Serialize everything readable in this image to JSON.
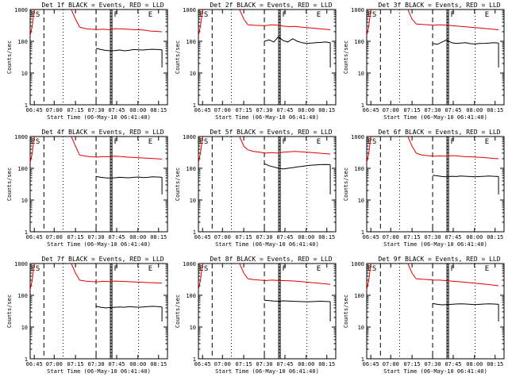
{
  "chart_data": [
    {
      "type": "line",
      "title": "Det 1f BLACK = Events, RED = LLD",
      "xlabel": "Start Time (06-May-10 06:41:40)",
      "ylabel": "Counts/sec",
      "x_ticks": [
        "06:45",
        "07:00",
        "07:15",
        "07:30",
        "07:45",
        "08:00",
        "08:15"
      ],
      "y_ticks": [
        "1",
        "10",
        "100",
        "1000"
      ],
      "ylim": [
        1,
        1000
      ],
      "y_scale": "log",
      "markers": [
        "E",
        "S",
        "F",
        "E"
      ],
      "series": [
        {
          "name": "LLD",
          "color": "#e00000",
          "values": [
            280,
            250,
            240,
            235,
            240,
            230,
            250,
            245,
            240,
            235,
            230,
            225,
            210,
            205,
            200
          ]
        },
        {
          "name": "Events",
          "color": "#000000",
          "values": [
            60,
            55,
            52,
            50,
            51,
            53,
            50,
            52,
            55,
            54,
            53,
            55,
            56,
            55,
            54
          ]
        }
      ]
    },
    {
      "type": "line",
      "title": "Det 2f BLACK = Events, RED = LLD",
      "xlabel": "Start Time (06-May-10 06:41:40)",
      "ylabel": "Counts/sec",
      "x_ticks": [
        "06:45",
        "07:00",
        "07:15",
        "07:30",
        "07:45",
        "08:00",
        "08:15"
      ],
      "y_ticks": [
        "1",
        "10",
        "100",
        "1000"
      ],
      "ylim": [
        1,
        1000
      ],
      "y_scale": "log",
      "markers": [
        "E",
        "S",
        "F",
        "E"
      ],
      "series": [
        {
          "name": "LLD",
          "color": "#e00000",
          "values": [
            330,
            320,
            315,
            310,
            330,
            320,
            300,
            290,
            295,
            280,
            270,
            260,
            250,
            240,
            230
          ]
        },
        {
          "name": "Events",
          "color": "#000000",
          "values": [
            100,
            110,
            95,
            140,
            105,
            95,
            120,
            100,
            90,
            85,
            88,
            90,
            92,
            95,
            90
          ]
        }
      ]
    },
    {
      "type": "line",
      "title": "Det 3f BLACK = Events, RED = LLD",
      "xlabel": "Start Time (06-May-10 06:41:40)",
      "ylabel": "Counts/sec",
      "x_ticks": [
        "06:45",
        "07:00",
        "07:15",
        "07:30",
        "07:45",
        "08:00",
        "08:15"
      ],
      "y_ticks": [
        "1",
        "10",
        "100",
        "1000"
      ],
      "ylim": [
        1,
        1000
      ],
      "y_scale": "log",
      "markers": [
        "E",
        "S",
        "F",
        "E"
      ],
      "series": [
        {
          "name": "LLD",
          "color": "#e00000",
          "values": [
            350,
            340,
            330,
            320,
            330,
            320,
            310,
            300,
            290,
            280,
            270,
            260,
            250,
            240,
            230
          ]
        },
        {
          "name": "Events",
          "color": "#000000",
          "values": [
            85,
            80,
            95,
            110,
            90,
            85,
            88,
            90,
            84,
            82,
            85,
            86,
            88,
            90,
            88
          ]
        }
      ]
    },
    {
      "type": "line",
      "title": "Det 4f BLACK = Events, RED = LLD",
      "xlabel": "Start Time (06-May-10 06:41:40)",
      "ylabel": "Counts/sec",
      "x_ticks": [
        "06:45",
        "07:00",
        "07:15",
        "07:30",
        "07:45",
        "08:00",
        "08:15"
      ],
      "y_ticks": [
        "1",
        "10",
        "100",
        "1000"
      ],
      "ylim": [
        1,
        1000
      ],
      "y_scale": "log",
      "markers": [
        "E",
        "S",
        "F",
        "E"
      ],
      "series": [
        {
          "name": "LLD",
          "color": "#e00000",
          "values": [
            260,
            240,
            230,
            225,
            235,
            230,
            240,
            235,
            225,
            220,
            215,
            210,
            205,
            200,
            195
          ]
        },
        {
          "name": "Events",
          "color": "#000000",
          "values": [
            55,
            52,
            50,
            49,
            50,
            52,
            51,
            50,
            52,
            53,
            51,
            52,
            54,
            53,
            52
          ]
        }
      ]
    },
    {
      "type": "line",
      "title": "Det 5f BLACK = Events, RED = LLD",
      "xlabel": "Start Time (06-May-10 06:41:40)",
      "ylabel": "Counts/sec",
      "x_ticks": [
        "06:45",
        "07:00",
        "07:15",
        "07:30",
        "07:45",
        "08:00",
        "08:15"
      ],
      "y_ticks": [
        "1",
        "10",
        "100",
        "1000"
      ],
      "ylim": [
        1,
        1000
      ],
      "y_scale": "log",
      "markers": [
        "E",
        "S",
        "F",
        "E"
      ],
      "series": [
        {
          "name": "LLD",
          "color": "#e00000",
          "values": [
            380,
            340,
            320,
            300,
            310,
            300,
            320,
            330,
            340,
            330,
            320,
            310,
            300,
            290,
            280
          ]
        },
        {
          "name": "Events",
          "color": "#000000",
          "values": [
            140,
            120,
            110,
            100,
            95,
            100,
            105,
            110,
            115,
            120,
            125,
            128,
            130,
            132,
            130
          ]
        }
      ]
    },
    {
      "type": "line",
      "title": "Det 6f BLACK = Events, RED = LLD",
      "xlabel": "Start Time (06-May-10 06:41:40)",
      "ylabel": "Counts/sec",
      "x_ticks": [
        "06:45",
        "07:00",
        "07:15",
        "07:30",
        "07:45",
        "08:00",
        "08:15"
      ],
      "y_ticks": [
        "1",
        "10",
        "100",
        "1000"
      ],
      "ylim": [
        1,
        1000
      ],
      "y_scale": "log",
      "markers": [
        "E",
        "S",
        "F",
        "E"
      ],
      "series": [
        {
          "name": "LLD",
          "color": "#e00000",
          "values": [
            300,
            260,
            250,
            240,
            245,
            240,
            250,
            245,
            235,
            230,
            225,
            220,
            215,
            205,
            200
          ]
        },
        {
          "name": "Events",
          "color": "#000000",
          "values": [
            60,
            58,
            55,
            54,
            56,
            55,
            57,
            56,
            55,
            54,
            55,
            56,
            57,
            56,
            55
          ]
        }
      ]
    },
    {
      "type": "line",
      "title": "Det 7f BLACK = Events, RED = LLD",
      "xlabel": "Start Time (06-May-10 06:41:40)",
      "ylabel": "Counts/sec",
      "x_ticks": [
        "06:45",
        "07:00",
        "07:15",
        "07:30",
        "07:45",
        "08:00",
        "08:15"
      ],
      "y_ticks": [
        "1",
        "10",
        "100",
        "1000"
      ],
      "ylim": [
        1,
        1000
      ],
      "y_scale": "log",
      "markers": [
        "E",
        "S",
        "F",
        "E"
      ],
      "series": [
        {
          "name": "LLD",
          "color": "#e00000",
          "values": [
            300,
            280,
            270,
            265,
            275,
            270,
            280,
            275,
            270,
            265,
            260,
            255,
            250,
            245,
            240
          ]
        },
        {
          "name": "Events",
          "color": "#000000",
          "values": [
            45,
            42,
            40,
            41,
            42,
            43,
            42,
            44,
            43,
            42,
            43,
            44,
            45,
            44,
            43
          ]
        }
      ]
    },
    {
      "type": "line",
      "title": "Det 8f BLACK = Events, RED = LLD",
      "xlabel": "Start Time (06-May-10 06:41:40)",
      "ylabel": "Counts/sec",
      "x_ticks": [
        "06:45",
        "07:00",
        "07:15",
        "07:30",
        "07:45",
        "08:00",
        "08:15"
      ],
      "y_ticks": [
        "1",
        "10",
        "100",
        "1000"
      ],
      "ylim": [
        1,
        1000
      ],
      "y_scale": "log",
      "markers": [
        "E",
        "S",
        "F",
        "E"
      ],
      "series": [
        {
          "name": "LLD",
          "color": "#e00000",
          "values": [
            330,
            310,
            300,
            290,
            300,
            295,
            290,
            285,
            280,
            270,
            260,
            250,
            240,
            230,
            220
          ]
        },
        {
          "name": "Events",
          "color": "#000000",
          "values": [
            70,
            68,
            66,
            65,
            67,
            66,
            65,
            64,
            63,
            62,
            63,
            64,
            65,
            64,
            63
          ]
        }
      ]
    },
    {
      "type": "line",
      "title": "Det 9f BLACK = Events, RED = LLD",
      "xlabel": "Start Time (06-May-10 06:41:40)",
      "ylabel": "Counts/sec",
      "x_ticks": [
        "06:45",
        "07:00",
        "07:15",
        "07:30",
        "07:45",
        "08:00",
        "08:15"
      ],
      "y_ticks": [
        "1",
        "10",
        "100",
        "1000"
      ],
      "ylim": [
        1,
        1000
      ],
      "y_scale": "log",
      "markers": [
        "E",
        "S",
        "F",
        "E"
      ],
      "series": [
        {
          "name": "LLD",
          "color": "#e00000",
          "values": [
            330,
            320,
            310,
            300,
            300,
            290,
            280,
            270,
            260,
            250,
            240,
            230,
            220,
            210,
            200
          ]
        },
        {
          "name": "Events",
          "color": "#000000",
          "values": [
            55,
            52,
            50,
            51,
            52,
            53,
            54,
            53,
            52,
            51,
            52,
            53,
            54,
            53,
            52
          ]
        }
      ]
    }
  ]
}
